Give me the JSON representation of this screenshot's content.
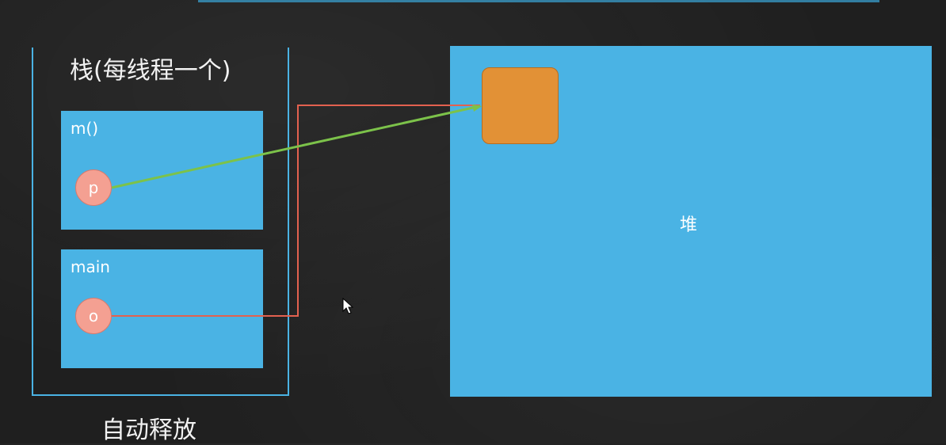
{
  "stack": {
    "title": "栈(每线程一个)",
    "frames": [
      {
        "label": "m()",
        "variable": "p"
      },
      {
        "label": "main",
        "variable": "o"
      }
    ]
  },
  "heap": {
    "label": "堆"
  },
  "footer": {
    "label": "自动释放"
  },
  "colors": {
    "background": "#1f1f1f",
    "block": "#4ab3e4",
    "object": "#e29136",
    "variable": "#f4a092",
    "arrow_p": "#7cc24a",
    "arrow_o": "#e3614f"
  },
  "icons": [
    "mouse-cursor-icon"
  ]
}
